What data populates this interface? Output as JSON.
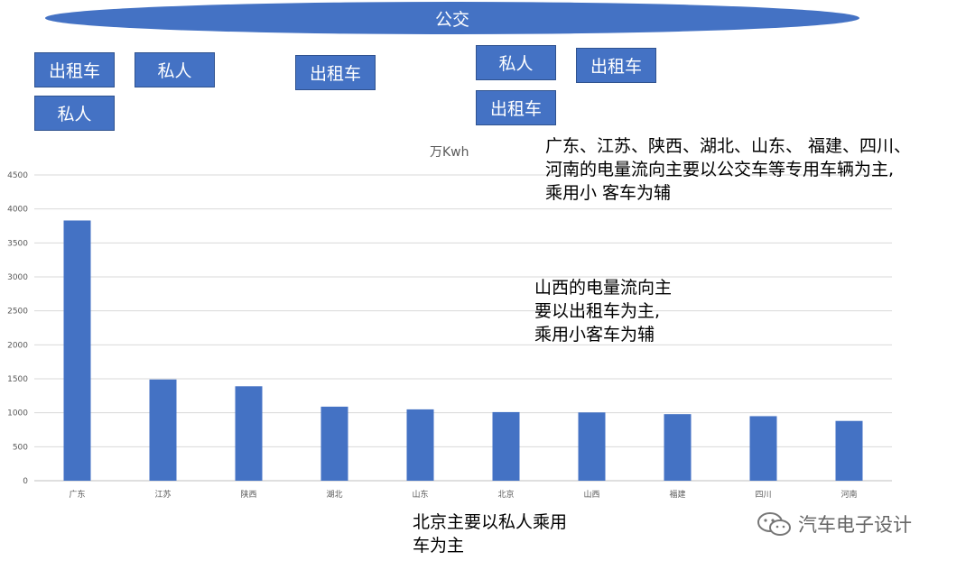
{
  "header": {
    "label": "公交"
  },
  "tags": [
    "出租车",
    "私人",
    "私人",
    "出租车",
    "出租车",
    "私人",
    "出租车"
  ],
  "notes": {
    "south_line1": "广东、江苏、陕西、湖北、山东、 福建、四川、",
    "south_line2": "河南的电量流向主要以公交车等专用车辆为主,",
    "south_line3": "乘用小 客车为辅",
    "shanxi_line1": "山西的电量流向主",
    "shanxi_line2": "要以出租车为主,",
    "shanxi_line3": "乘用小客车为辅",
    "beijing_line1": "北京主要以私人乘用",
    "beijing_line2": "车为主"
  },
  "watermark": {
    "text": "汽车电子设计",
    "icon": "wechat-icon"
  },
  "chart_data": {
    "type": "bar",
    "unit_label": "万Kwh",
    "categories": [
      "广东",
      "江苏",
      "陕西",
      "湖北",
      "山东",
      "北京",
      "山西",
      "福建",
      "四川",
      "河南"
    ],
    "values": [
      3830,
      1490,
      1390,
      1090,
      1050,
      1010,
      1005,
      980,
      950,
      880
    ],
    "ylim": [
      0,
      4500
    ],
    "yticks": [
      0,
      500,
      1000,
      1500,
      2000,
      2500,
      3000,
      3500,
      4000,
      4500
    ],
    "grid": true,
    "color": "#4472c4"
  }
}
